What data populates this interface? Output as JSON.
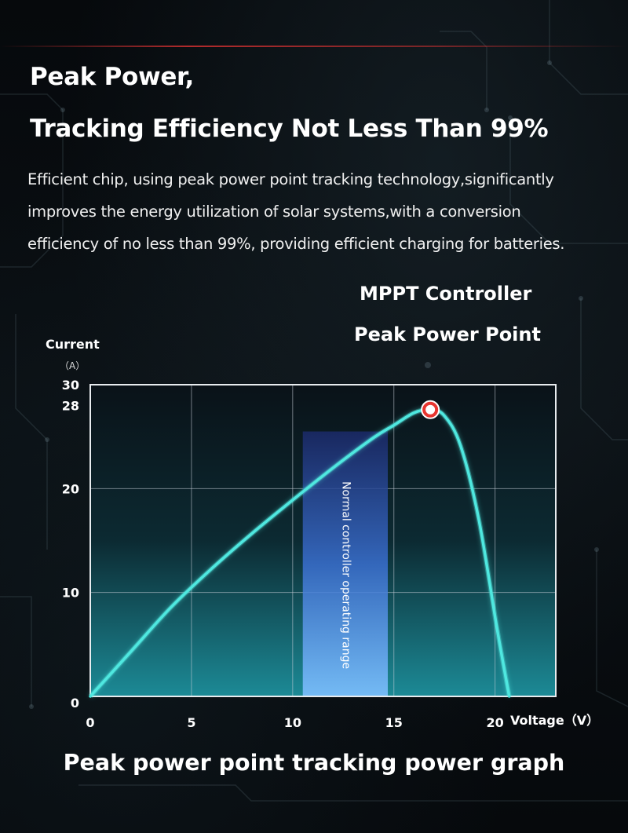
{
  "headline": {
    "line1": "Peak Power,",
    "line2": "Tracking Efficiency Not Less Than 99%"
  },
  "description": {
    "lines": [
      "Efficient chip, using peak power point tracking technology,significantly",
      "improves the energy utilization of solar systems,with a conversion",
      "efficiency of no less than 99%, providing efficient charging for batteries."
    ]
  },
  "callout": {
    "line1": "MPPT Controller",
    "line2": "Peak Power Point"
  },
  "footer_title": "Peak power point tracking power graph",
  "colors": {
    "curve": "#4fe8e0",
    "peak_marker": "#e8352f",
    "range_band": "#5a9bf0",
    "grid": "#c8d0d8",
    "background": "#05080b"
  },
  "chart_data": {
    "type": "line",
    "title": "",
    "ylabel": "Current",
    "ylabel_unit": "（A）",
    "xlabel": "Voltage（V）",
    "xlim": [
      0,
      23
    ],
    "ylim": [
      0,
      30
    ],
    "x_ticks": [
      "0",
      "5",
      "10",
      "15",
      "20"
    ],
    "x_tick_values": [
      0,
      5,
      10,
      15,
      20
    ],
    "y_ticks": [
      "0",
      "10",
      "20",
      "28",
      "30"
    ],
    "y_tick_values": [
      0,
      10,
      20,
      28,
      30
    ],
    "grid": true,
    "series": [
      {
        "x": [
          0,
          2,
          4,
          6,
          8,
          10,
          12,
          14,
          15,
          16,
          16.8,
          17.5,
          18.3,
          19.2,
          20.1,
          20.7
        ],
        "y": [
          0,
          4.3,
          8.6,
          12.3,
          15.7,
          18.9,
          22.0,
          24.9,
          26.1,
          27.3,
          27.6,
          27.0,
          24.1,
          17.0,
          6.5,
          0
        ]
      }
    ],
    "peak_point": {
      "x": 16.8,
      "y": 27.6,
      "label": "Peak Power Point"
    },
    "range_band": {
      "x_start": 10.5,
      "x_end": 14.7,
      "label": "Normal controller operating range"
    }
  }
}
